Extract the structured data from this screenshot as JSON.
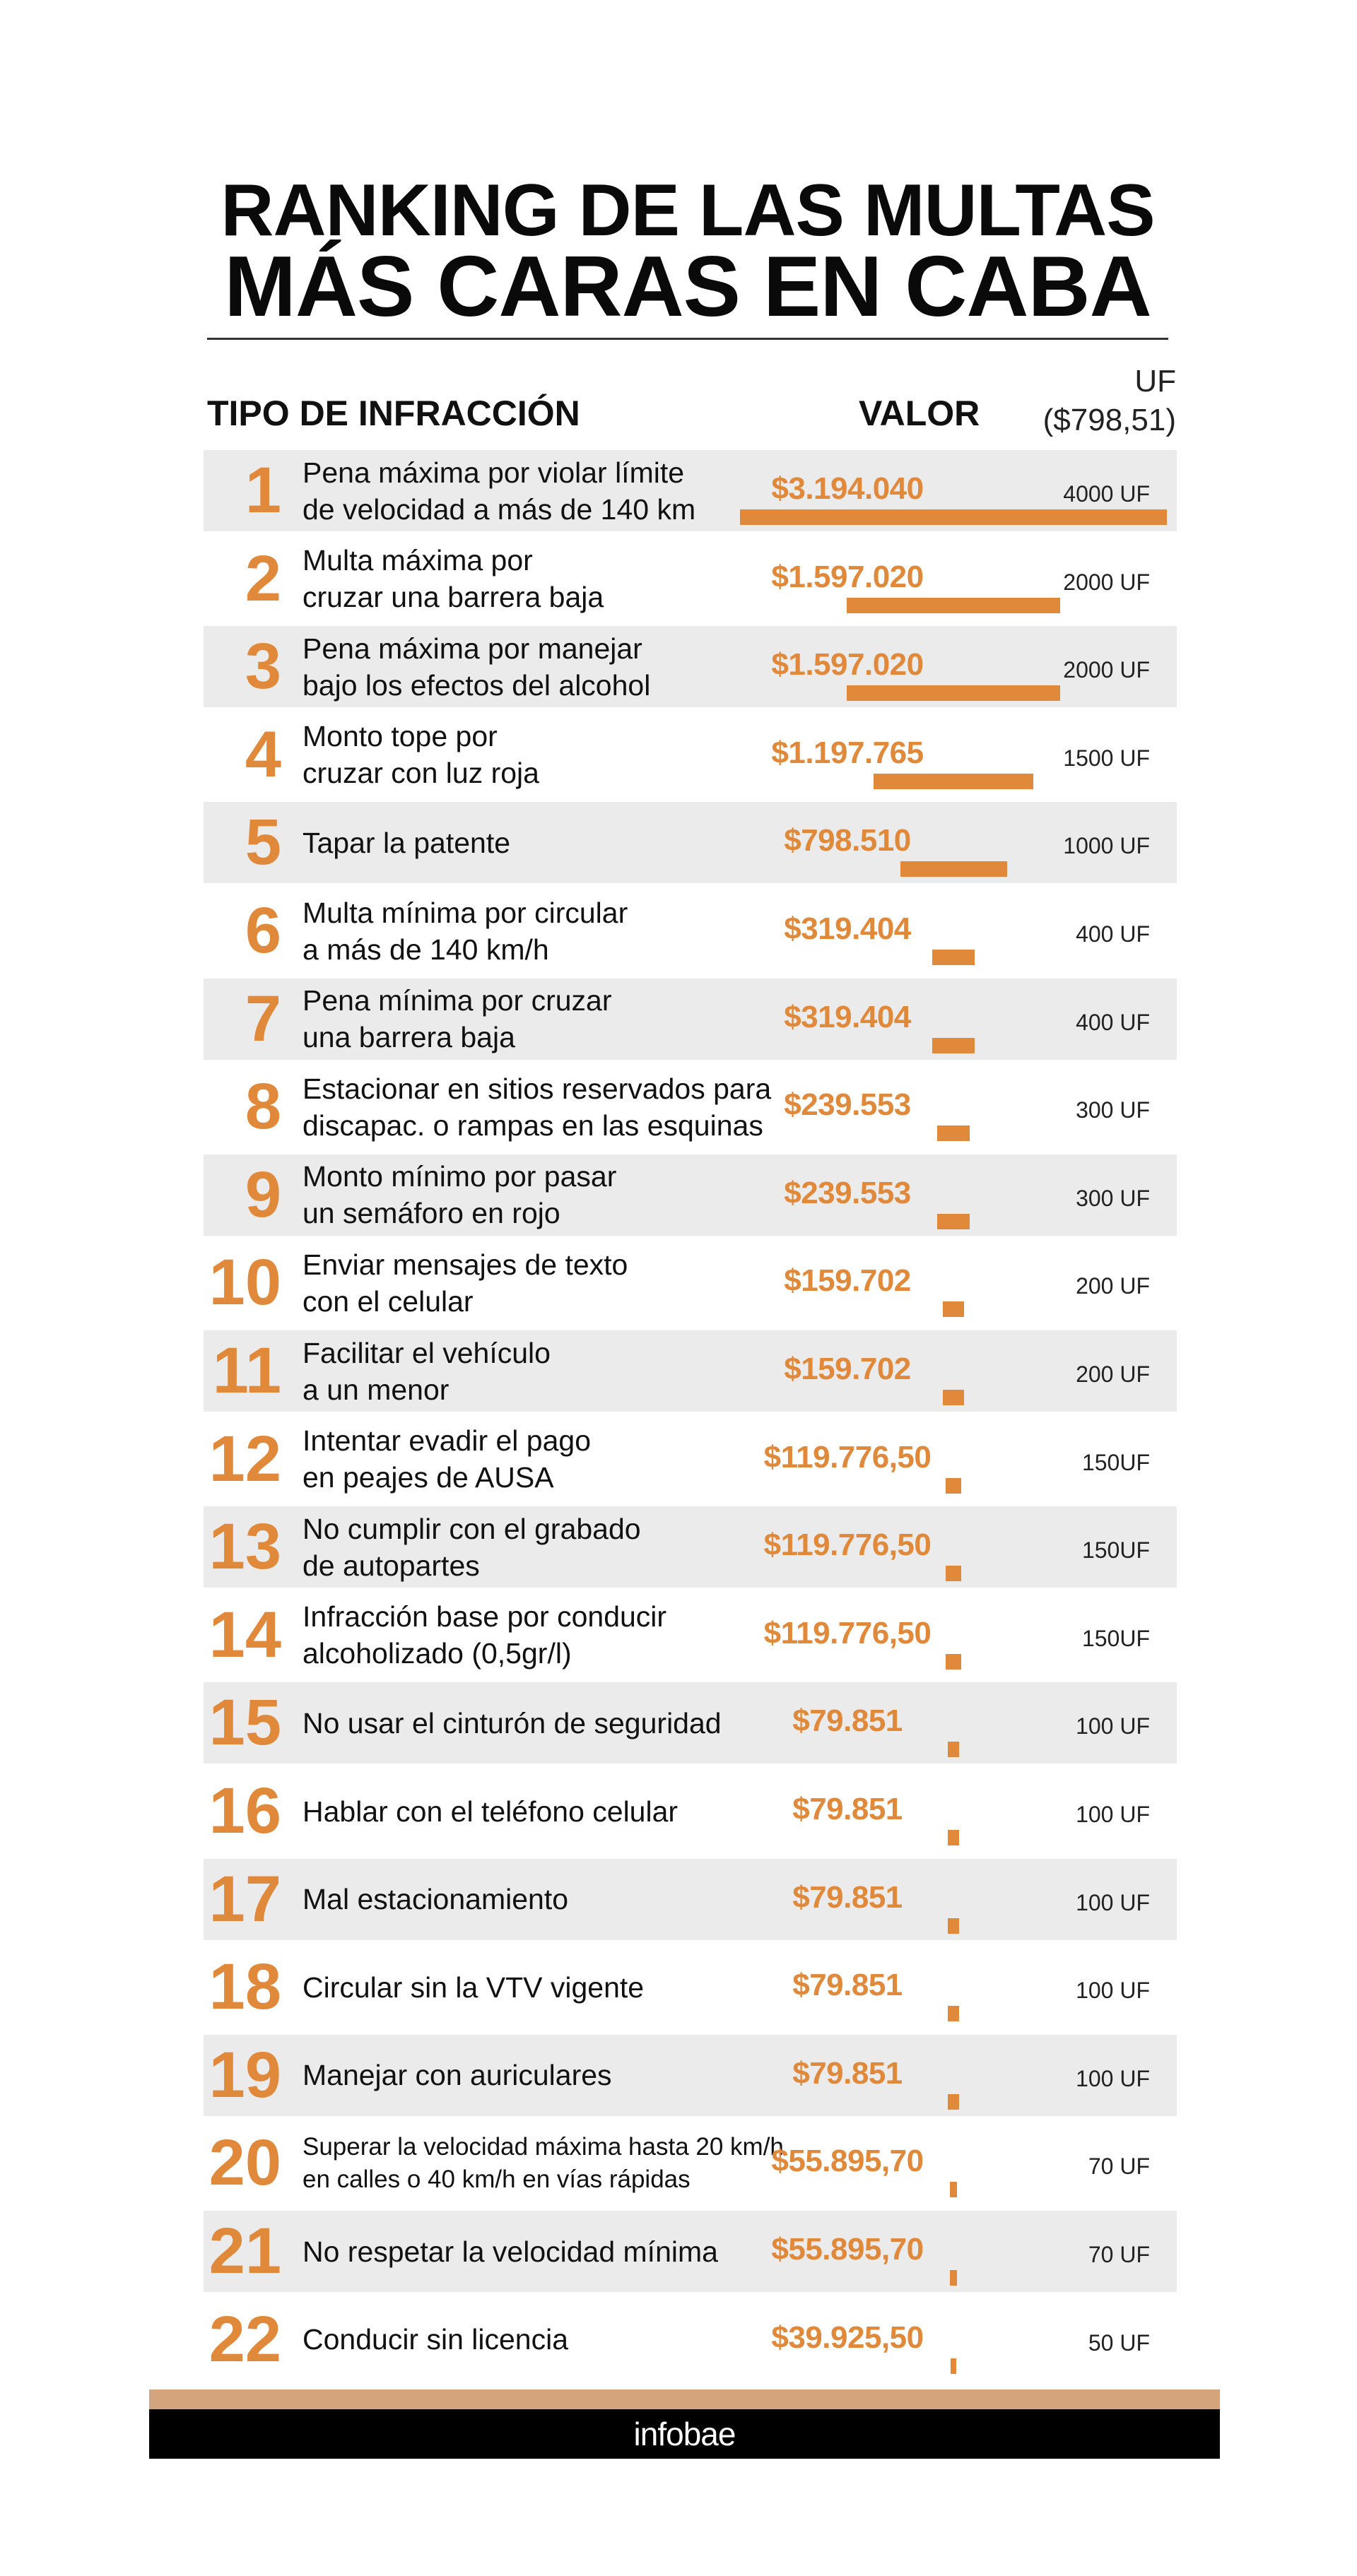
{
  "title": {
    "line1": "RANKING DE LAS MULTAS",
    "line2": "MÁS CARAS EN CABA"
  },
  "headers": {
    "tipo": "TIPO DE INFRACCIÓN",
    "valor": "VALOR",
    "uf_line1": "UF",
    "uf_line2": "($798,51)"
  },
  "colors": {
    "accent": "#e0893a",
    "row_gray": "#ebebeb",
    "footer_tan": "#d4a57c",
    "footer_black": "#000000"
  },
  "footer": {
    "logo": "infobae"
  },
  "chart_data": {
    "type": "bar",
    "orientation": "horizontal",
    "value_unit": "UF",
    "rows": [
      {
        "rank": "1",
        "lines": [
          "Pena máxima por violar límite",
          "de velocidad a más de 140 km"
        ],
        "value": "$3.194.040",
        "uf": 4000,
        "uf_label": "4000 UF"
      },
      {
        "rank": "2",
        "lines": [
          "Multa máxima por",
          "cruzar una barrera baja"
        ],
        "value": "$1.597.020",
        "uf": 2000,
        "uf_label": "2000 UF"
      },
      {
        "rank": "3",
        "lines": [
          "Pena máxima por manejar",
          "bajo los efectos del alcohol"
        ],
        "value": "$1.597.020",
        "uf": 2000,
        "uf_label": "2000 UF"
      },
      {
        "rank": "4",
        "lines": [
          "Monto tope por",
          "cruzar con luz roja"
        ],
        "value": "$1.197.765",
        "uf": 1500,
        "uf_label": "1500 UF"
      },
      {
        "rank": "5",
        "lines": [
          "Tapar la patente"
        ],
        "value": "$798.510",
        "uf": 1000,
        "uf_label": "1000 UF"
      },
      {
        "rank": "6",
        "lines": [
          "Multa mínima por circular",
          "a más de 140 km/h"
        ],
        "value": "$319.404",
        "uf": 400,
        "uf_label": "400 UF"
      },
      {
        "rank": "7",
        "lines": [
          "Pena mínima por cruzar",
          "una barrera baja"
        ],
        "value": "$319.404",
        "uf": 400,
        "uf_label": "400 UF"
      },
      {
        "rank": "8",
        "lines": [
          "Estacionar en sitios reservados para",
          "discapac. o rampas en las esquinas"
        ],
        "value": "$239.553",
        "uf": 300,
        "uf_label": "300 UF"
      },
      {
        "rank": "9",
        "lines": [
          "Monto mínimo por pasar",
          "un semáforo en rojo"
        ],
        "value": "$239.553",
        "uf": 300,
        "uf_label": "300 UF"
      },
      {
        "rank": "10",
        "lines": [
          "Enviar mensajes de texto",
          "con el celular"
        ],
        "value": "$159.702",
        "uf": 200,
        "uf_label": "200 UF"
      },
      {
        "rank": "11",
        "lines": [
          "Facilitar el vehículo",
          "a un menor"
        ],
        "value": "$159.702",
        "uf": 200,
        "uf_label": "200 UF"
      },
      {
        "rank": "12",
        "lines": [
          "Intentar evadir el pago",
          "en peajes de AUSA"
        ],
        "value": "$119.776,50",
        "uf": 150,
        "uf_label": "150UF"
      },
      {
        "rank": "13",
        "lines": [
          "No cumplir con el grabado",
          "de autopartes"
        ],
        "value": "$119.776,50",
        "uf": 150,
        "uf_label": "150UF"
      },
      {
        "rank": "14",
        "lines": [
          "Infracción base por conducir",
          "alcoholizado (0,5gr/l)"
        ],
        "value": "$119.776,50",
        "uf": 150,
        "uf_label": "150UF"
      },
      {
        "rank": "15",
        "lines": [
          "No usar el cinturón de seguridad"
        ],
        "value": "$79.851",
        "uf": 100,
        "uf_label": "100 UF"
      },
      {
        "rank": "16",
        "lines": [
          "Hablar con el teléfono celular"
        ],
        "value": "$79.851",
        "uf": 100,
        "uf_label": "100 UF"
      },
      {
        "rank": "17",
        "lines": [
          "Mal estacionamiento"
        ],
        "value": "$79.851",
        "uf": 100,
        "uf_label": "100 UF"
      },
      {
        "rank": "18",
        "lines": [
          "Circular sin la VTV vigente"
        ],
        "value": "$79.851",
        "uf": 100,
        "uf_label": "100 UF"
      },
      {
        "rank": "19",
        "lines": [
          "Manejar con auriculares"
        ],
        "value": "$79.851",
        "uf": 100,
        "uf_label": "100 UF"
      },
      {
        "rank": "20",
        "lines": [
          "Superar la velocidad máxima hasta 20 km/h",
          "en calles o 40 km/h en vías rápidas"
        ],
        "value": "$55.895,70",
        "uf": 70,
        "uf_label": "70 UF"
      },
      {
        "rank": "21",
        "lines": [
          "No respetar la velocidad mínima"
        ],
        "value": "$55.895,70",
        "uf": 70,
        "uf_label": "70 UF"
      },
      {
        "rank": "22",
        "lines": [
          "Conducir sin licencia"
        ],
        "value": "$39.925,50",
        "uf": 50,
        "uf_label": "50 UF"
      }
    ]
  }
}
